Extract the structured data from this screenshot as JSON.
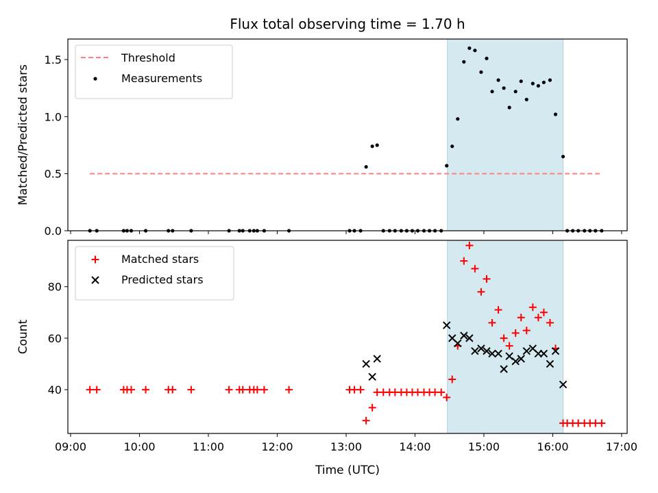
{
  "chart_data": {
    "title": "Flux total observing time = 1.70 h",
    "shared_x": {
      "xlabel": "Time (UTC)",
      "tick_labels": [
        "09:00",
        "10:00",
        "11:00",
        "12:00",
        "13:00",
        "14:00",
        "15:00",
        "16:00",
        "17:00"
      ],
      "tick_values_hours": [
        9,
        10,
        11,
        12,
        13,
        14,
        15,
        16,
        17
      ],
      "xlim_hours": [
        8.96,
        17.08
      ]
    },
    "highlight_span_hours": [
      14.47,
      16.15
    ],
    "highlight_color": "#d4eaf0",
    "panels": [
      {
        "type": "scatter",
        "ylabel": "Matched/Predicted stars",
        "ylim": [
          0,
          1.68
        ],
        "y_ticks": [
          0.0,
          0.5,
          1.0,
          1.5
        ],
        "y_tick_labels": [
          "0.0",
          "0.5",
          "1.0",
          "1.5"
        ],
        "legend_position": "upper-left",
        "threshold": {
          "name": "Threshold",
          "value": 0.5,
          "x_range_hours": [
            9.28,
            16.72
          ],
          "color": "#ff7f7f",
          "style": "dashed"
        },
        "series": [
          {
            "name": "Measurements",
            "marker": "dot",
            "color": "#000000",
            "points": [
              [
                9.28,
                0
              ],
              [
                9.38,
                0
              ],
              [
                9.77,
                0
              ],
              [
                9.82,
                0
              ],
              [
                9.88,
                0
              ],
              [
                10.09,
                0
              ],
              [
                10.42,
                0
              ],
              [
                10.48,
                0
              ],
              [
                10.75,
                0
              ],
              [
                11.3,
                0
              ],
              [
                11.45,
                0
              ],
              [
                11.5,
                0
              ],
              [
                11.6,
                0
              ],
              [
                11.66,
                0
              ],
              [
                11.71,
                0
              ],
              [
                11.81,
                0
              ],
              [
                12.17,
                0
              ],
              [
                13.05,
                0
              ],
              [
                13.12,
                0
              ],
              [
                13.21,
                0
              ],
              [
                13.29,
                0.56
              ],
              [
                13.38,
                0.74
              ],
              [
                13.45,
                0.75
              ],
              [
                13.54,
                0
              ],
              [
                13.63,
                0
              ],
              [
                13.71,
                0
              ],
              [
                13.8,
                0
              ],
              [
                13.88,
                0
              ],
              [
                13.96,
                0
              ],
              [
                14.04,
                0
              ],
              [
                14.13,
                0
              ],
              [
                14.21,
                0
              ],
              [
                14.29,
                0
              ],
              [
                14.38,
                0
              ],
              [
                14.46,
                0.57
              ],
              [
                14.54,
                0.74
              ],
              [
                14.62,
                0.98
              ],
              [
                14.71,
                1.48
              ],
              [
                14.79,
                1.6
              ],
              [
                14.87,
                1.58
              ],
              [
                14.96,
                1.39
              ],
              [
                15.04,
                1.51
              ],
              [
                15.12,
                1.22
              ],
              [
                15.21,
                1.32
              ],
              [
                15.29,
                1.25
              ],
              [
                15.37,
                1.08
              ],
              [
                15.46,
                1.22
              ],
              [
                15.54,
                1.31
              ],
              [
                15.62,
                1.15
              ],
              [
                15.71,
                1.29
              ],
              [
                15.79,
                1.27
              ],
              [
                15.87,
                1.3
              ],
              [
                15.96,
                1.32
              ],
              [
                16.04,
                1.02
              ],
              [
                16.15,
                0.65
              ],
              [
                16.21,
                0
              ],
              [
                16.29,
                0
              ],
              [
                16.37,
                0
              ],
              [
                16.46,
                0
              ],
              [
                16.54,
                0
              ],
              [
                16.62,
                0
              ],
              [
                16.71,
                0
              ]
            ]
          }
        ]
      },
      {
        "type": "scatter",
        "ylabel": "Count",
        "ylim": [
          23,
          98
        ],
        "y_ticks": [
          40,
          60,
          80
        ],
        "y_tick_labels": [
          "40",
          "60",
          "80"
        ],
        "legend_position": "upper-left",
        "series": [
          {
            "name": "Matched stars",
            "marker": "plus",
            "color": "#ff0000",
            "points": [
              [
                9.28,
                40
              ],
              [
                9.38,
                40
              ],
              [
                9.77,
                40
              ],
              [
                9.82,
                40
              ],
              [
                9.88,
                40
              ],
              [
                10.09,
                40
              ],
              [
                10.42,
                40
              ],
              [
                10.48,
                40
              ],
              [
                10.75,
                40
              ],
              [
                11.3,
                40
              ],
              [
                11.45,
                40
              ],
              [
                11.5,
                40
              ],
              [
                11.6,
                40
              ],
              [
                11.66,
                40
              ],
              [
                11.71,
                40
              ],
              [
                11.81,
                40
              ],
              [
                12.17,
                40
              ],
              [
                13.05,
                40
              ],
              [
                13.12,
                40
              ],
              [
                13.21,
                40
              ],
              [
                13.29,
                28
              ],
              [
                13.38,
                33
              ],
              [
                13.45,
                39
              ],
              [
                13.54,
                39
              ],
              [
                13.63,
                39
              ],
              [
                13.71,
                39
              ],
              [
                13.8,
                39
              ],
              [
                13.88,
                39
              ],
              [
                13.96,
                39
              ],
              [
                14.04,
                39
              ],
              [
                14.13,
                39
              ],
              [
                14.21,
                39
              ],
              [
                14.29,
                39
              ],
              [
                14.38,
                39
              ],
              [
                14.46,
                37
              ],
              [
                14.54,
                44
              ],
              [
                14.62,
                57
              ],
              [
                14.71,
                90
              ],
              [
                14.79,
                96
              ],
              [
                14.87,
                87
              ],
              [
                14.96,
                78
              ],
              [
                15.04,
                83
              ],
              [
                15.12,
                66
              ],
              [
                15.21,
                71
              ],
              [
                15.29,
                60
              ],
              [
                15.37,
                57
              ],
              [
                15.46,
                62
              ],
              [
                15.54,
                68
              ],
              [
                15.62,
                63
              ],
              [
                15.71,
                72
              ],
              [
                15.79,
                68
              ],
              [
                15.87,
                70
              ],
              [
                15.96,
                66
              ],
              [
                16.04,
                56
              ],
              [
                16.15,
                27
              ],
              [
                16.21,
                27
              ],
              [
                16.29,
                27
              ],
              [
                16.37,
                27
              ],
              [
                16.46,
                27
              ],
              [
                16.54,
                27
              ],
              [
                16.62,
                27
              ],
              [
                16.71,
                27
              ]
            ]
          },
          {
            "name": "Predicted stars",
            "marker": "x",
            "color": "#000000",
            "points": [
              [
                13.29,
                50
              ],
              [
                13.38,
                45
              ],
              [
                13.45,
                52
              ],
              [
                14.46,
                65
              ],
              [
                14.54,
                60
              ],
              [
                14.62,
                58
              ],
              [
                14.71,
                61
              ],
              [
                14.79,
                60
              ],
              [
                14.87,
                55
              ],
              [
                14.96,
                56
              ],
              [
                15.04,
                55
              ],
              [
                15.12,
                54
              ],
              [
                15.21,
                54
              ],
              [
                15.29,
                48
              ],
              [
                15.37,
                53
              ],
              [
                15.46,
                51
              ],
              [
                15.54,
                52
              ],
              [
                15.62,
                55
              ],
              [
                15.71,
                56
              ],
              [
                15.79,
                54
              ],
              [
                15.87,
                54
              ],
              [
                15.96,
                50
              ],
              [
                16.04,
                55
              ],
              [
                16.15,
                42
              ]
            ]
          }
        ]
      }
    ]
  }
}
